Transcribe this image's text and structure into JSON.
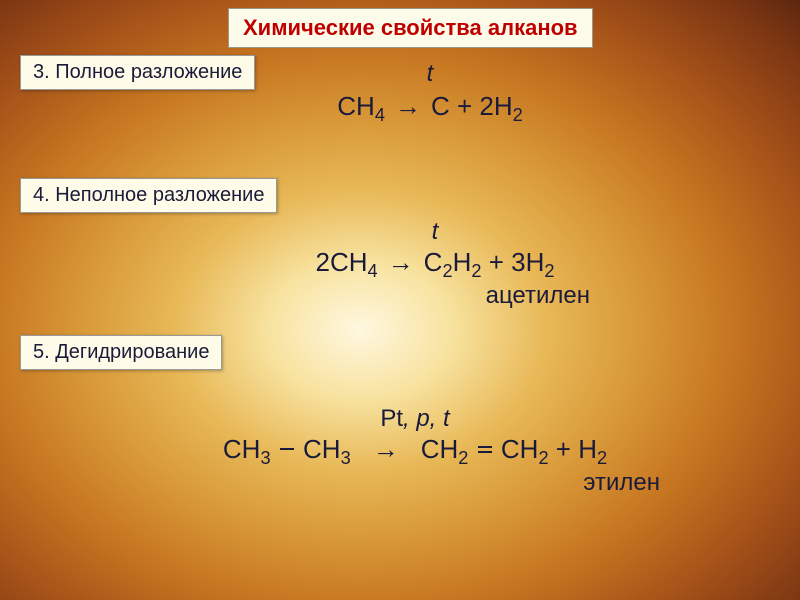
{
  "title": "Химические свойства алканов",
  "sections": {
    "s3": "3. Полное разложение",
    "s4": "4. Неполное разложение",
    "s5": "5.  Дегидрирование"
  },
  "equations": {
    "eq1": {
      "condition": "t",
      "lhs_coef": "",
      "lhs_base": "CH",
      "lhs_sub": "4",
      "rhs_1": "C + 2H",
      "rhs_1_sub": "2"
    },
    "eq2": {
      "condition": "t",
      "lhs_coef": "2",
      "lhs_base": "CH",
      "lhs_sub": "4",
      "rhs_1": "C",
      "rhs_1_sub": "2",
      "rhs_2": "H",
      "rhs_2_sub": "2",
      "rhs_3": " + 3H",
      "rhs_3_sub": "2",
      "sublabel": "ацетилен"
    },
    "eq3": {
      "condition_1": "Pt",
      "condition_2": ", p, t",
      "lhs_a": "CH",
      "lhs_a_sub": "3",
      "lhs_b": "CH",
      "lhs_b_sub": "3",
      "rhs_a": "CH",
      "rhs_a_sub": "2",
      "rhs_b": "CH",
      "rhs_b_sub": "2",
      "rhs_c": " + H",
      "rhs_c_sub": "2",
      "sublabel": "этилен"
    }
  },
  "arrow_glyph": "→"
}
